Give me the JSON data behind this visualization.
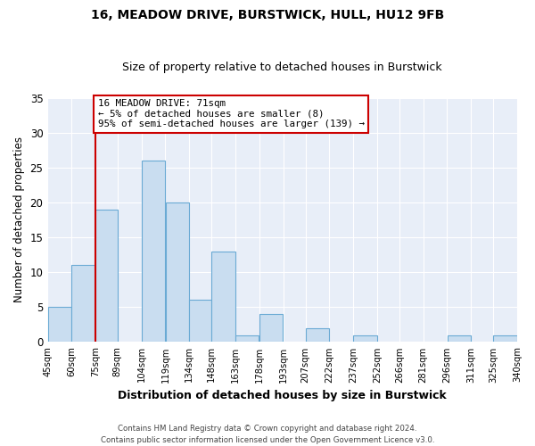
{
  "title": "16, MEADOW DRIVE, BURSTWICK, HULL, HU12 9FB",
  "subtitle": "Size of property relative to detached houses in Burstwick",
  "xlabel": "Distribution of detached houses by size in Burstwick",
  "ylabel": "Number of detached properties",
  "footer_line1": "Contains HM Land Registry data © Crown copyright and database right 2024.",
  "footer_line2": "Contains public sector information licensed under the Open Government Licence v3.0.",
  "bin_edges": [
    45,
    60,
    75,
    89,
    104,
    119,
    134,
    148,
    163,
    178,
    193,
    207,
    222,
    237,
    252,
    266,
    281,
    296,
    311,
    325,
    340
  ],
  "bin_labels": [
    "45sqm",
    "60sqm",
    "75sqm",
    "89sqm",
    "104sqm",
    "119sqm",
    "134sqm",
    "148sqm",
    "163sqm",
    "178sqm",
    "193sqm",
    "207sqm",
    "222sqm",
    "237sqm",
    "252sqm",
    "266sqm",
    "281sqm",
    "296sqm",
    "311sqm",
    "325sqm",
    "340sqm"
  ],
  "counts": [
    5,
    11,
    19,
    0,
    26,
    20,
    6,
    13,
    1,
    4,
    0,
    2,
    0,
    1,
    0,
    0,
    0,
    1,
    0,
    1
  ],
  "bar_color": "#c9ddf0",
  "bar_edge_color": "#6aaad4",
  "property_line_x": 75,
  "property_line_color": "#cc0000",
  "ylim": [
    0,
    35
  ],
  "yticks": [
    0,
    5,
    10,
    15,
    20,
    25,
    30,
    35
  ],
  "annotation_line1": "16 MEADOW DRIVE: 71sqm",
  "annotation_line2": "← 5% of detached houses are smaller (8)",
  "annotation_line3": "95% of semi-detached houses are larger (139) →",
  "annotation_box_edge_color": "#cc0000",
  "annotation_box_face_color": "#ffffff",
  "plot_bg_color": "#e8eef8",
  "fig_bg_color": "#ffffff",
  "grid_color": "#ffffff"
}
